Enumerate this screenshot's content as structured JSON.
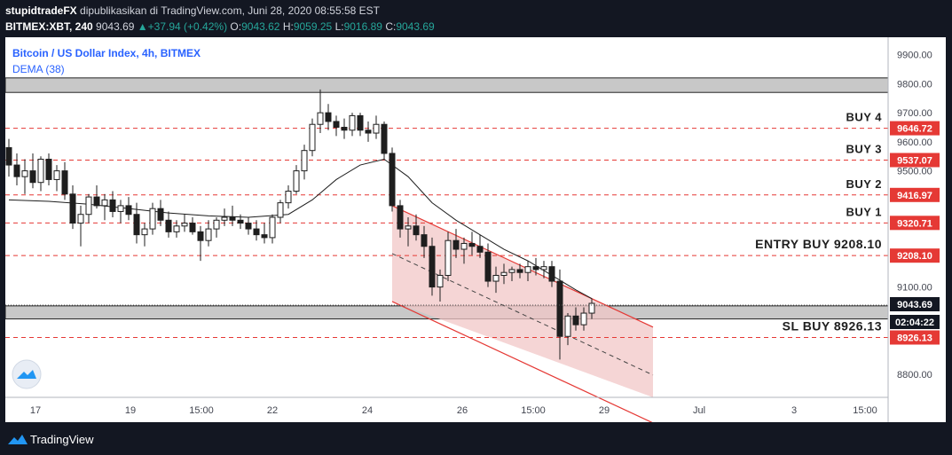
{
  "header": {
    "author": "stupidtradeFX",
    "published": "dipublikasikan di TradingView.com, Juni 28, 2020 08:55:58 EST",
    "symbol": "BITMEX:XBT, 240",
    "last": "9043.69",
    "change": "+37.94 (+0.42%)",
    "o_label": "O:",
    "o_val": "9043.62",
    "h_label": "H:",
    "h_val": "9059.25",
    "l_label": "L:",
    "l_val": "9016.89",
    "c_label": "C:",
    "c_val": "9043.69"
  },
  "footer": {
    "brand": "TradingView"
  },
  "colors": {
    "background": "#ffffff",
    "red_line": "#e53935",
    "channel_fill": "#f2c7c7",
    "zone": "#c8c8c8",
    "candle_up": "#ffffff",
    "candle_down": "#1e1e1e",
    "dema": "#1e1e1e"
  },
  "chart_data": {
    "type": "candlestick",
    "title": "Bitcoin / US Dollar Index, 4h, BITMEX",
    "indicator": "DEMA (38)",
    "ylim": [
      8720,
      9960
    ],
    "y_ticks": [
      "9900.00",
      "9800.00",
      "9700.00",
      "9600.00",
      "9500.00",
      "9100.00",
      "8800.00"
    ],
    "x_ticks": [
      "17",
      "19",
      "15:00",
      "22",
      "24",
      "26",
      "15:00",
      "29",
      "Jul",
      "3",
      "15:00"
    ],
    "last_price": "9043.69",
    "countdown": "02:04:22",
    "levels": [
      {
        "label": "BUY 4",
        "price": 9646.72,
        "badge": "9646.72"
      },
      {
        "label": "BUY 3",
        "price": 9537.07,
        "badge": "9537.07"
      },
      {
        "label": "BUY 2",
        "price": 9416.97,
        "badge": "9416.97"
      },
      {
        "label": "BUY 1",
        "price": 9320.71,
        "badge": "9320.71"
      },
      {
        "label": "ENTRY BUY 9208.10",
        "price": 9208.1,
        "badge": "9208.10"
      },
      {
        "label": "SL BUY 8926.13",
        "price": 8926.13,
        "badge": "8926.13"
      }
    ],
    "zones": [
      {
        "from": 9770,
        "to": 9820
      },
      {
        "from": 8990,
        "to": 9035
      }
    ],
    "candles": [
      [
        9580,
        9610,
        9480,
        9520
      ],
      [
        9520,
        9560,
        9450,
        9480
      ],
      [
        9480,
        9540,
        9420,
        9500
      ],
      [
        9500,
        9560,
        9440,
        9460
      ],
      [
        9460,
        9550,
        9430,
        9540
      ],
      [
        9540,
        9560,
        9450,
        9470
      ],
      [
        9470,
        9520,
        9430,
        9500
      ],
      [
        9500,
        9530,
        9400,
        9420
      ],
      [
        9420,
        9450,
        9300,
        9320
      ],
      [
        9320,
        9380,
        9240,
        9350
      ],
      [
        9350,
        9420,
        9320,
        9410
      ],
      [
        9410,
        9450,
        9370,
        9380
      ],
      [
        9380,
        9420,
        9330,
        9400
      ],
      [
        9400,
        9430,
        9340,
        9360
      ],
      [
        9360,
        9400,
        9320,
        9380
      ],
      [
        9380,
        9410,
        9330,
        9350
      ],
      [
        9350,
        9390,
        9250,
        9280
      ],
      [
        9280,
        9320,
        9240,
        9300
      ],
      [
        9300,
        9390,
        9280,
        9370
      ],
      [
        9370,
        9400,
        9310,
        9330
      ],
      [
        9330,
        9360,
        9270,
        9290
      ],
      [
        9290,
        9330,
        9270,
        9310
      ],
      [
        9310,
        9350,
        9290,
        9320
      ],
      [
        9320,
        9340,
        9280,
        9290
      ],
      [
        9290,
        9310,
        9190,
        9260
      ],
      [
        9260,
        9330,
        9240,
        9300
      ],
      [
        9300,
        9340,
        9270,
        9330
      ],
      [
        9330,
        9370,
        9310,
        9340
      ],
      [
        9340,
        9380,
        9310,
        9330
      ],
      [
        9330,
        9350,
        9300,
        9320
      ],
      [
        9320,
        9340,
        9280,
        9300
      ],
      [
        9300,
        9330,
        9260,
        9280
      ],
      [
        9280,
        9320,
        9250,
        9270
      ],
      [
        9270,
        9350,
        9250,
        9340
      ],
      [
        9340,
        9400,
        9320,
        9390
      ],
      [
        9390,
        9450,
        9370,
        9430
      ],
      [
        9430,
        9520,
        9420,
        9500
      ],
      [
        9500,
        9590,
        9470,
        9570
      ],
      [
        9570,
        9680,
        9550,
        9660
      ],
      [
        9660,
        9780,
        9630,
        9700
      ],
      [
        9700,
        9730,
        9640,
        9670
      ],
      [
        9670,
        9690,
        9620,
        9650
      ],
      [
        9650,
        9680,
        9610,
        9640
      ],
      [
        9640,
        9700,
        9620,
        9690
      ],
      [
        9690,
        9700,
        9620,
        9640
      ],
      [
        9640,
        9670,
        9600,
        9630
      ],
      [
        9630,
        9690,
        9610,
        9660
      ],
      [
        9660,
        9670,
        9540,
        9560
      ],
      [
        9560,
        9580,
        9360,
        9380
      ],
      [
        9380,
        9400,
        9270,
        9300
      ],
      [
        9300,
        9340,
        9240,
        9310
      ],
      [
        9310,
        9350,
        9260,
        9280
      ],
      [
        9280,
        9310,
        9200,
        9240
      ],
      [
        9240,
        9270,
        9070,
        9100
      ],
      [
        9100,
        9160,
        9050,
        9140
      ],
      [
        9140,
        9290,
        9120,
        9260
      ],
      [
        9260,
        9300,
        9200,
        9230
      ],
      [
        9230,
        9270,
        9180,
        9250
      ],
      [
        9250,
        9290,
        9210,
        9240
      ],
      [
        9240,
        9280,
        9200,
        9220
      ],
      [
        9220,
        9250,
        9100,
        9120
      ],
      [
        9120,
        9170,
        9080,
        9140
      ],
      [
        9140,
        9180,
        9110,
        9150
      ],
      [
        9150,
        9170,
        9120,
        9160
      ],
      [
        9160,
        9180,
        9130,
        9150
      ],
      [
        9150,
        9190,
        9120,
        9170
      ],
      [
        9170,
        9200,
        9140,
        9160
      ],
      [
        9160,
        9190,
        9130,
        9170
      ],
      [
        9170,
        9190,
        9100,
        9120
      ],
      [
        9120,
        9160,
        8850,
        8930
      ],
      [
        8930,
        9010,
        8900,
        9000
      ],
      [
        9000,
        9030,
        8950,
        8970
      ],
      [
        8970,
        9030,
        8950,
        9010
      ],
      [
        9010,
        9060,
        8990,
        9043.69
      ]
    ],
    "dema": [
      [
        0,
        9400
      ],
      [
        5,
        9395
      ],
      [
        10,
        9385
      ],
      [
        15,
        9370
      ],
      [
        20,
        9355
      ],
      [
        25,
        9345
      ],
      [
        30,
        9340
      ],
      [
        35,
        9350
      ],
      [
        38,
        9400
      ],
      [
        41,
        9470
      ],
      [
        44,
        9520
      ],
      [
        47,
        9540
      ],
      [
        50,
        9480
      ],
      [
        53,
        9390
      ],
      [
        56,
        9330
      ],
      [
        59,
        9280
      ],
      [
        62,
        9230
      ],
      [
        65,
        9190
      ],
      [
        68,
        9140
      ],
      [
        71,
        9090
      ],
      [
        73,
        9060
      ]
    ]
  }
}
